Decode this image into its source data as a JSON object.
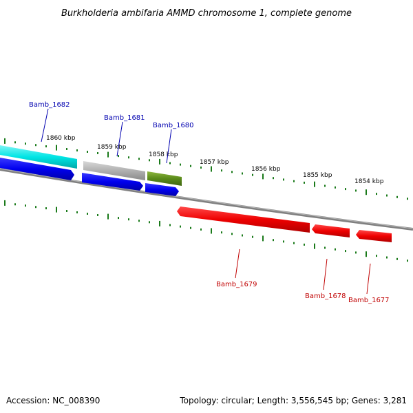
{
  "title": "Burkholderia ambifaria AMMD chromosome 1, complete genome",
  "accession": "Accession: NC_008390",
  "summary": "Topology: circular; Length: 3,556,545 bp; Genes: 3,281",
  "colors": {
    "forward_label": "#0000b0",
    "reverse_label": "#c00000",
    "tick": "#1a7a1a",
    "backbone": "#808080"
  },
  "ticks": [
    {
      "label": "1860 kbp"
    },
    {
      "label": "1859 kbp"
    },
    {
      "label": "1858 kbp"
    },
    {
      "label": "1857 kbp"
    },
    {
      "label": "1856 kbp"
    },
    {
      "label": "1855 kbp"
    },
    {
      "label": "1854 kbp"
    }
  ],
  "genes": [
    {
      "name": "Bamb_1682",
      "strand": "forward",
      "color": "#00e5e5"
    },
    {
      "name": "Bamb_1681",
      "strand": "forward",
      "color": "#b0b0b0"
    },
    {
      "name": "Bamb_1680",
      "strand": "forward",
      "color": "#5a8a1a"
    },
    {
      "name": "Bamb_1679",
      "strand": "reverse",
      "color": "#ee0000"
    },
    {
      "name": "Bamb_1678",
      "strand": "reverse",
      "color": "#ee0000"
    },
    {
      "name": "Bamb_1677",
      "strand": "reverse",
      "color": "#ee0000"
    }
  ],
  "orf_color": "#0000ee"
}
